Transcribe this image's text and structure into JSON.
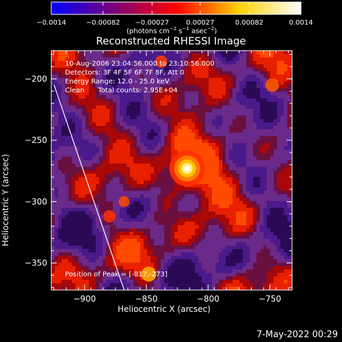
{
  "chart_data": {
    "type": "heatmap",
    "title": "Reconstructed RHESSI Image",
    "xlabel": "Heliocentric X (arcsec)",
    "ylabel": "Heliocentric Y (arcsec)",
    "xlim": [
      -927,
      -732
    ],
    "ylim": [
      -372,
      -177
    ],
    "xticks": [
      -900,
      -850,
      -800,
      -750
    ],
    "yticks": [
      -200,
      -250,
      -300,
      -350
    ],
    "peak": {
      "x": -817,
      "y": -273
    },
    "colorbar": {
      "min": -0.0014,
      "max": 0.0014,
      "ticks": [
        -0.0014,
        -0.00082,
        -0.00027,
        0.00027,
        0.00082,
        0.0014
      ],
      "tick_labels": [
        "−0.0014",
        "−0.00082",
        "−0.00027",
        "0.00027",
        "0.00082",
        "0.0014"
      ],
      "unit_parts": [
        "(photons cm",
        "−2",
        " s",
        "−1",
        " asec",
        "−2",
        ")"
      ],
      "colors": [
        "#0000ff",
        "#7a007a",
        "#ff0000",
        "#ffd000",
        "#ffffff"
      ]
    },
    "annotations": {
      "time_range": "10-Aug-2006 23:04:56.000 to 23:10:56.000",
      "detectors": "Detectors: 3F 4F 5F 6F 7F 8F, Att 0",
      "energy_range": "Energy Range: 12.0 - 25.0 keV",
      "algorithm": "Clean",
      "counts": "Total counts: 2.95E+04",
      "peak_position": "Position of Peak = [-817,-273]"
    }
  },
  "footer": {
    "date": "7-May-2022 00:29"
  }
}
